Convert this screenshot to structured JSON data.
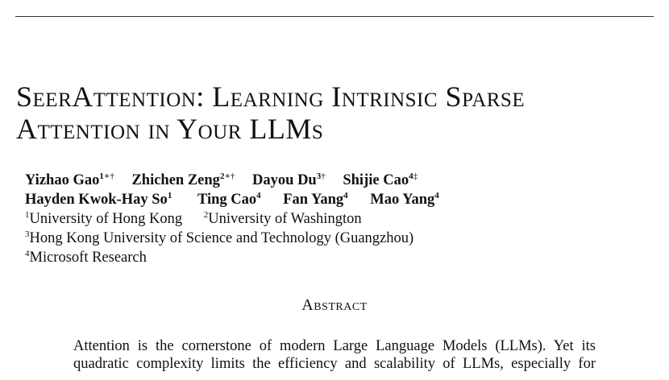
{
  "title": {
    "line1": "SeerAttention: Learning Intrinsic Sparse",
    "line2": "Attention in Your LLMs"
  },
  "authors": [
    {
      "name": "Yizhao Gao",
      "sup": "1",
      "marks": "∗†"
    },
    {
      "name": "Zhichen Zeng",
      "sup": "2",
      "marks": "∗†"
    },
    {
      "name": "Dayou Du",
      "sup": "3",
      "marks": "†"
    },
    {
      "name": "Shijie Cao",
      "sup": "4",
      "marks": "‡"
    },
    {
      "name": "Hayden Kwok-Hay So",
      "sup": "1",
      "marks": ""
    },
    {
      "name": "Ting Cao",
      "sup": "4",
      "marks": ""
    },
    {
      "name": "Fan Yang",
      "sup": "4",
      "marks": ""
    },
    {
      "name": "Mao Yang",
      "sup": "4",
      "marks": ""
    }
  ],
  "affiliations": [
    {
      "sup": "1",
      "name": "University of Hong Kong"
    },
    {
      "sup": "2",
      "name": "University of Washington"
    },
    {
      "sup": "3",
      "name": "Hong Kong University of Science and Technology (Guangzhou)"
    },
    {
      "sup": "4",
      "name": "Microsoft Research"
    }
  ],
  "abstract": {
    "heading": "Abstract",
    "lines": [
      "Attention is the cornerstone of modern Large Language Models (LLMs). Yet its",
      "quadratic complexity limits the efficiency and scalability of LLMs, especially for"
    ]
  }
}
